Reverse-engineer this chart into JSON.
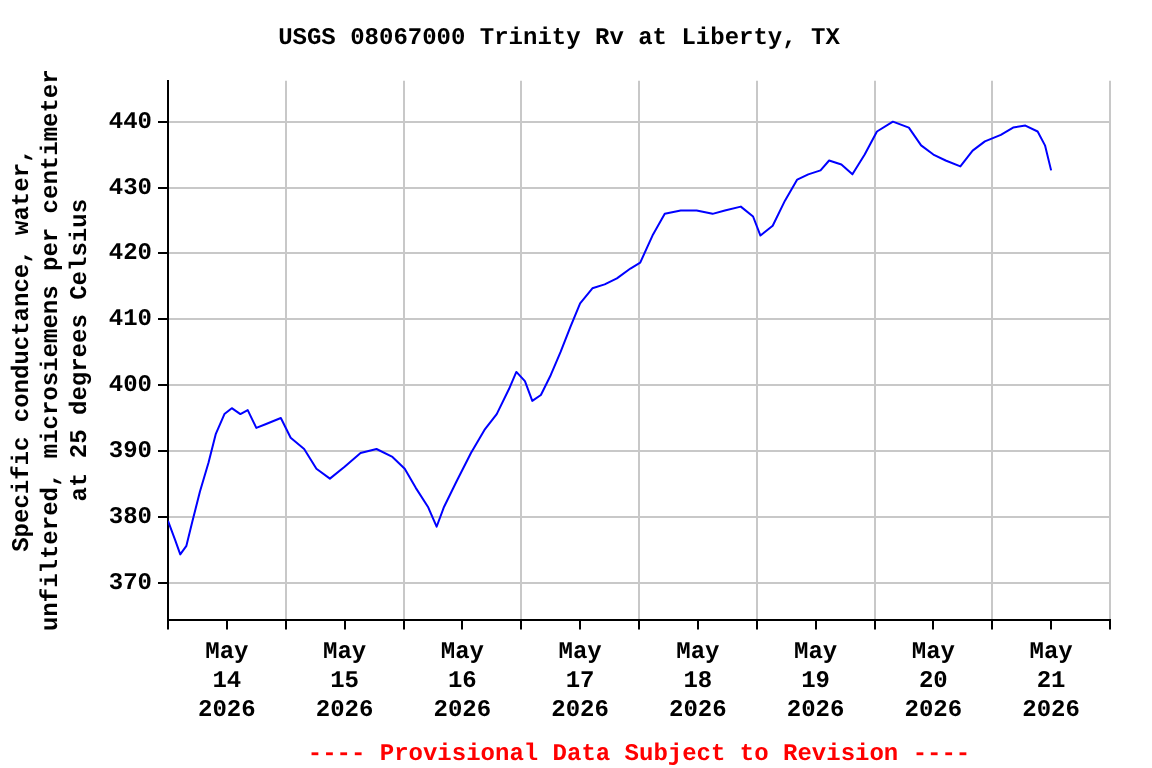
{
  "chart_data": {
    "type": "line",
    "title": "USGS 08067000 Trinity Rv at Liberty, TX",
    "ylabel": "Specific conductance, water,\nunfiltered, microsiemens per centimeter\nat 25 degrees Celsius",
    "annotations": [
      "---- Provisional Data Subject to Revision ----"
    ],
    "x": [
      "2026-05-14T00:00",
      "2026-05-14T01:30",
      "2026-05-14T02:30",
      "2026-05-14T03:45",
      "2026-05-14T05:00",
      "2026-05-14T06:30",
      "2026-05-14T08:15",
      "2026-05-14T09:45",
      "2026-05-14T11:30",
      "2026-05-14T13:00",
      "2026-05-14T14:45",
      "2026-05-14T16:15",
      "2026-05-14T18:00",
      "2026-05-14T20:00",
      "2026-05-14T23:00",
      "2026-05-15T01:00",
      "2026-05-15T03:45",
      "2026-05-15T06:15",
      "2026-05-15T09:00",
      "2026-05-15T12:00",
      "2026-05-15T15:15",
      "2026-05-15T18:30",
      "2026-05-15T21:45",
      "2026-05-16T00:15",
      "2026-05-16T02:30",
      "2026-05-16T05:00",
      "2026-05-16T06:45",
      "2026-05-16T08:15",
      "2026-05-16T10:45",
      "2026-05-16T13:45",
      "2026-05-16T16:30",
      "2026-05-16T19:00",
      "2026-05-16T21:30",
      "2026-05-16T23:00",
      "2026-05-17T00:45",
      "2026-05-17T02:15",
      "2026-05-17T04:00",
      "2026-05-17T06:00",
      "2026-05-17T08:00",
      "2026-05-17T10:00",
      "2026-05-17T12:00",
      "2026-05-17T14:30",
      "2026-05-17T17:00",
      "2026-05-17T19:30",
      "2026-05-17T22:15",
      "2026-05-18T00:15",
      "2026-05-18T02:45",
      "2026-05-18T05:15",
      "2026-05-18T08:30",
      "2026-05-18T11:45",
      "2026-05-18T15:00",
      "2026-05-18T17:30",
      "2026-05-18T20:45",
      "2026-05-18T23:15",
      "2026-05-19T00:45",
      "2026-05-19T03:15",
      "2026-05-19T05:45",
      "2026-05-19T08:15",
      "2026-05-19T10:30",
      "2026-05-19T13:00",
      "2026-05-19T14:45",
      "2026-05-19T17:15",
      "2026-05-19T19:30",
      "2026-05-19T22:00",
      "2026-05-20T00:30",
      "2026-05-20T03:45",
      "2026-05-20T07:00",
      "2026-05-20T09:30",
      "2026-05-20T12:00",
      "2026-05-20T14:30",
      "2026-05-20T17:30",
      "2026-05-20T20:00",
      "2026-05-20T22:30",
      "2026-05-21T01:45",
      "2026-05-21T04:15",
      "2026-05-21T06:45",
      "2026-05-21T09:15",
      "2026-05-21T10:45",
      "2026-05-21T12:00"
    ],
    "series": [
      {
        "color": "#0000ff",
        "values": [
          379.4,
          376.4,
          374.3,
          375.6,
          379.4,
          383.8,
          388.2,
          392.6,
          395.6,
          396.5,
          395.6,
          396.2,
          393.5,
          394.1,
          395,
          392,
          390.3,
          387.3,
          385.8,
          387.6,
          389.7,
          390.3,
          389.1,
          387.3,
          384.4,
          381.5,
          378.5,
          381.5,
          385.3,
          389.7,
          393.2,
          395.6,
          399.4,
          402,
          400.6,
          397.6,
          398.5,
          401.5,
          405,
          408.8,
          412.4,
          414.7,
          415.3,
          416.2,
          417.7,
          418.6,
          422.7,
          426,
          426.5,
          426.5,
          426,
          426.5,
          427.1,
          425.6,
          422.7,
          424.2,
          428,
          431.2,
          432,
          432.6,
          434.1,
          433.5,
          432,
          435,
          438.5,
          440,
          439.1,
          436.4,
          435,
          434.1,
          433.2,
          435.6,
          437,
          438,
          439.1,
          439.4,
          438.5,
          436.4,
          432.6
        ]
      }
    ],
    "xlim": [
      "2026-05-14T00:00",
      "2026-05-22T00:00"
    ],
    "xticks": [
      {
        "value": "2026-05-14T00:00",
        "label": null
      },
      {
        "value": "2026-05-14T12:00",
        "label": "May\n14\n2026"
      },
      {
        "value": "2026-05-15T00:00",
        "label": null
      },
      {
        "value": "2026-05-15T12:00",
        "label": "May\n15\n2026"
      },
      {
        "value": "2026-05-16T00:00",
        "label": null
      },
      {
        "value": "2026-05-16T12:00",
        "label": "May\n16\n2026"
      },
      {
        "value": "2026-05-17T00:00",
        "label": null
      },
      {
        "value": "2026-05-17T12:00",
        "label": "May\n17\n2026"
      },
      {
        "value": "2026-05-18T00:00",
        "label": null
      },
      {
        "value": "2026-05-18T12:00",
        "label": "May\n18\n2026"
      },
      {
        "value": "2026-05-19T00:00",
        "label": null
      },
      {
        "value": "2026-05-19T12:00",
        "label": "May\n19\n2026"
      },
      {
        "value": "2026-05-20T00:00",
        "label": null
      },
      {
        "value": "2026-05-20T12:00",
        "label": "May\n20\n2026"
      },
      {
        "value": "2026-05-21T00:00",
        "label": null
      },
      {
        "value": "2026-05-21T12:00",
        "label": "May\n21\n2026"
      },
      {
        "value": "2026-05-22T00:00",
        "label": null
      }
    ],
    "ylim": [
      364.4,
      446.2
    ],
    "yticks": [
      370,
      380,
      390,
      400,
      410,
      420,
      430,
      440
    ],
    "grid": true,
    "marker": "none",
    "line_style": "solid"
  }
}
